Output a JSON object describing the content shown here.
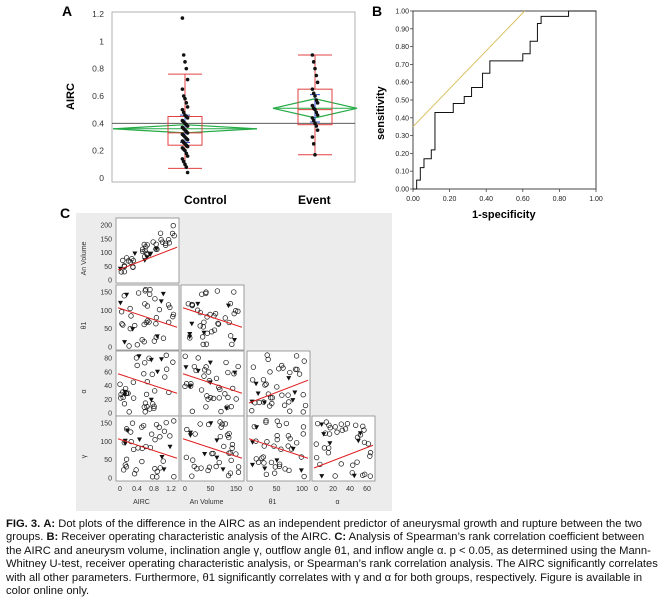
{
  "panels": {
    "a_label": "A",
    "b_label": "B",
    "c_label": "C"
  },
  "chart_data": [
    {
      "type": "scatter",
      "panel": "A",
      "ylabel": "AIRC",
      "categories": [
        "Control",
        "Event"
      ],
      "yticks": [
        "0",
        "0.2",
        "0.4",
        "0.6",
        "0.8",
        "1",
        "1.2"
      ],
      "ylim": [
        0,
        1.2
      ],
      "grand_mean": 0.4,
      "groups": [
        {
          "name": "Control",
          "mean": 0.36,
          "ci": [
            0.33,
            0.39
          ],
          "q1": 0.24,
          "q3": 0.45,
          "median": 0.33,
          "whisker": [
            0.07,
            0.76
          ],
          "values": [
            1.17,
            0.9,
            0.85,
            0.8,
            0.72,
            0.65,
            0.6,
            0.58,
            0.55,
            0.52,
            0.5,
            0.48,
            0.46,
            0.45,
            0.44,
            0.42,
            0.41,
            0.4,
            0.39,
            0.38,
            0.37,
            0.36,
            0.35,
            0.34,
            0.33,
            0.32,
            0.31,
            0.3,
            0.29,
            0.28,
            0.27,
            0.26,
            0.25,
            0.24,
            0.23,
            0.22,
            0.21,
            0.2,
            0.18,
            0.16,
            0.14,
            0.12,
            0.1,
            0.08,
            0.04
          ]
        },
        {
          "name": "Event",
          "mean": 0.51,
          "ci": [
            0.44,
            0.58
          ],
          "q1": 0.39,
          "q3": 0.65,
          "median": 0.5,
          "whisker": [
            0.17,
            0.9
          ],
          "values": [
            0.9,
            0.85,
            0.8,
            0.75,
            0.7,
            0.65,
            0.62,
            0.6,
            0.57,
            0.55,
            0.53,
            0.51,
            0.5,
            0.48,
            0.46,
            0.44,
            0.42,
            0.4,
            0.38,
            0.35,
            0.3,
            0.25,
            0.17
          ]
        }
      ]
    },
    {
      "type": "line",
      "panel": "B",
      "xlabel": "1-specificity",
      "ylabel": "sensitivity",
      "xticks": [
        "0.00",
        "0.20",
        "0.40",
        "0.60",
        "0.80",
        "1.00"
      ],
      "yticks": [
        "0.00",
        "0.10",
        "0.20",
        "0.30",
        "0.40",
        "0.50",
        "0.60",
        "0.70",
        "0.80",
        "0.90",
        "1.00"
      ],
      "xlim": [
        0,
        1
      ],
      "ylim": [
        0,
        1
      ],
      "series": [
        {
          "x": [
            0,
            0.02,
            0.02,
            0.04,
            0.04,
            0.06,
            0.06,
            0.1,
            0.1,
            0.12,
            0.12,
            0.22,
            0.22,
            0.28,
            0.28,
            0.32,
            0.32,
            0.38,
            0.38,
            0.42,
            0.42,
            0.6,
            0.6,
            0.64,
            0.64,
            0.68,
            0.68,
            0.7,
            0.7,
            0.85,
            0.85,
            1.0
          ],
          "y": [
            0,
            0,
            0.05,
            0.05,
            0.12,
            0.12,
            0.17,
            0.17,
            0.22,
            0.22,
            0.43,
            0.43,
            0.48,
            0.48,
            0.52,
            0.52,
            0.57,
            0.57,
            0.65,
            0.65,
            0.72,
            0.72,
            0.76,
            0.76,
            0.83,
            0.83,
            0.93,
            0.93,
            0.97,
            0.97,
            1.0,
            1.0
          ]
        },
        {
          "x": [
            0,
            0.61
          ],
          "y": [
            0.35,
            1.0
          ]
        }
      ]
    },
    {
      "type": "scatter",
      "panel": "C",
      "variables": [
        "AIRC",
        "An Volume",
        "θ1",
        "α",
        "γ"
      ],
      "row_ticks": [
        [
          "0",
          "50",
          "100",
          "150",
          "200"
        ],
        [
          "0",
          "50",
          "100",
          "150"
        ],
        [
          "0",
          "20",
          "40",
          "60",
          "80"
        ],
        [
          "0",
          "50",
          "100",
          "150"
        ]
      ],
      "col_ticks": [
        [
          "0",
          "0.4",
          "0.8",
          "1.2"
        ],
        [
          "0",
          "50",
          "150"
        ],
        [
          "0",
          "50",
          "100"
        ],
        [
          "0",
          "20",
          "40",
          "60"
        ]
      ]
    }
  ],
  "caption": {
    "fig_label": "FIG. 3.",
    "a_label": "A:",
    "a_text": " Dot plots of the difference in the AIRC as an independent predictor of aneurysmal growth and rupture between the two groups. ",
    "b_label": "B:",
    "b_text": " Receiver operating characteristic analysis of the AIRC. ",
    "c_label": "C:",
    "c_text": " Analysis of Spearman’s rank correlation coefficient between the AIRC and aneurysm volume, inclination angle γ, outflow angle θ1, and inflow angle α. p < 0.05, as determined using the Mann-Whitney U-test, receiver operating characteristic analysis, or Spearman’s rank correlation analysis. The AIRC significantly correlates with all other parameters. Furthermore, θ1 significantly correlates with γ and α for both groups, respectively. Figure is available in color online only."
  }
}
